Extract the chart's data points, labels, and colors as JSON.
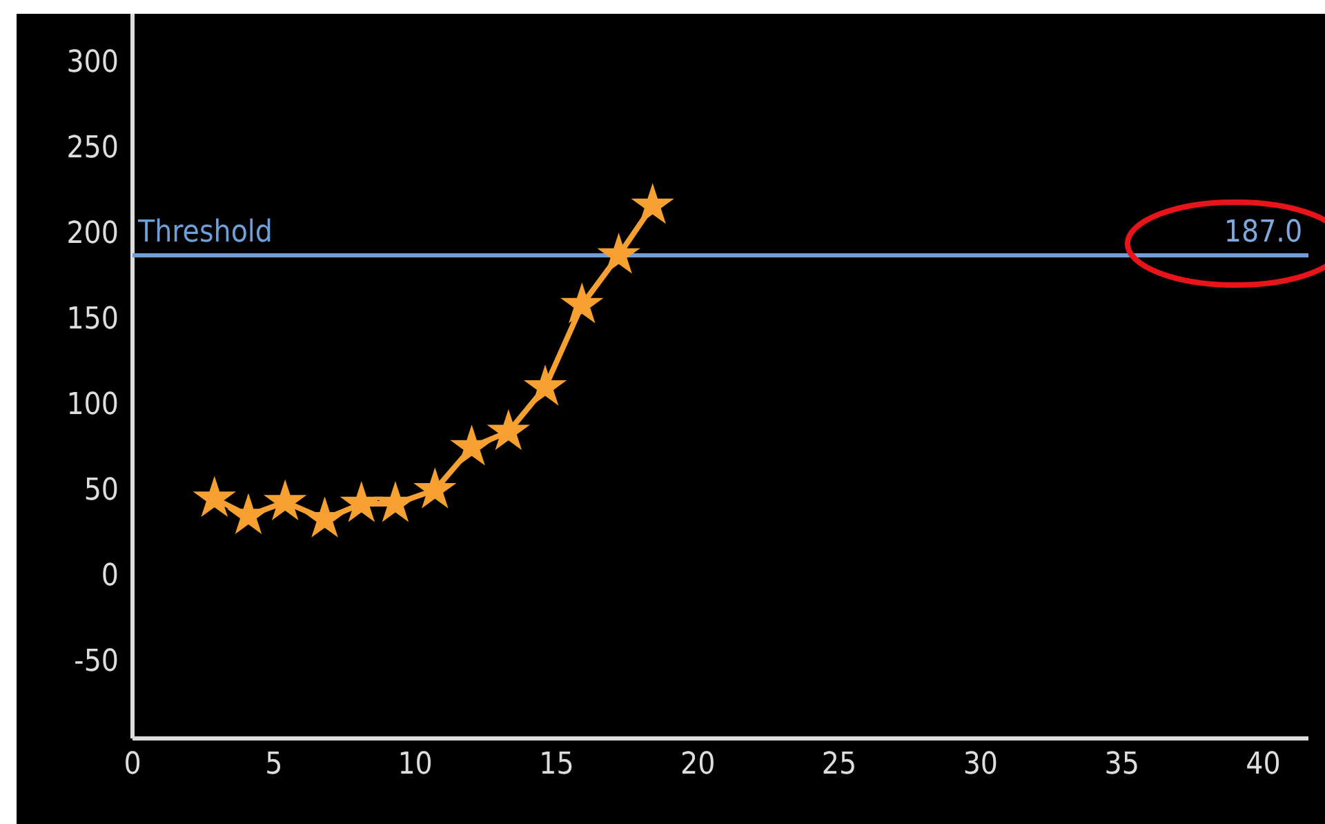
{
  "chart_data": {
    "type": "line",
    "x": [
      2.9,
      4.1,
      5.4,
      6.8,
      8.1,
      9.3,
      10.7,
      12.0,
      13.3,
      14.6,
      15.9,
      17.2,
      18.4
    ],
    "series": [
      {
        "color": "#f5a030",
        "values": [
          45,
          35,
          43,
          33,
          42,
          42,
          50,
          75,
          84,
          110,
          158,
          187,
          216
        ]
      }
    ],
    "xlim": [
      0,
      41.6
    ],
    "xticks": [
      0,
      5,
      10,
      15,
      20,
      25,
      30,
      35,
      40
    ],
    "ylim": [
      -95,
      328
    ],
    "yticks": [
      -50,
      0,
      50,
      100,
      150,
      200,
      250,
      300
    ],
    "marker": "star",
    "line_style": "solid",
    "grid": false,
    "ref_lines": [
      {
        "axis": "y",
        "value": 187,
        "label": "Threshold",
        "color": "#6f9fd8",
        "line_style": "solid"
      }
    ],
    "annotations": [
      {
        "text": "187.0",
        "x": 40,
        "y": 187
      }
    ]
  }
}
